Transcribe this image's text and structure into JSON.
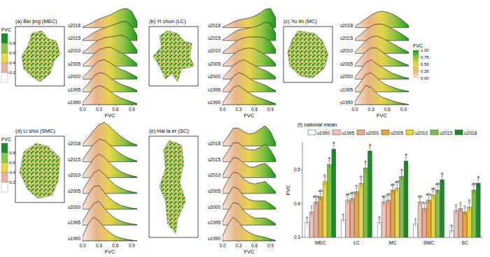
{
  "chart_data": [
    {
      "type": "ridgeline",
      "title": "(a) Bei jing (MEC)",
      "xlabel": "FVC",
      "x": [
        0,
        0.1,
        0.2,
        0.3,
        0.4,
        0.5,
        0.6,
        0.7,
        0.8,
        0.9,
        1.0
      ],
      "xlim": [
        0,
        1
      ],
      "xticks": [
        {
          "value": 0,
          "label": "0.0"
        },
        0.3,
        0.6,
        0.9
      ],
      "series": [
        {
          "name": "u1990",
          "values": [
            0.1,
            0.45,
            0.85,
            1.0,
            0.9,
            0.7,
            0.5,
            0.35,
            0.25,
            0.15,
            0.05
          ]
        },
        {
          "name": "u1995",
          "values": [
            0.1,
            0.4,
            0.8,
            1.0,
            0.95,
            0.75,
            0.55,
            0.4,
            0.3,
            0.2,
            0.07
          ]
        },
        {
          "name": "u2000",
          "values": [
            0.08,
            0.35,
            0.7,
            0.95,
            1.0,
            0.85,
            0.65,
            0.5,
            0.4,
            0.25,
            0.1
          ]
        },
        {
          "name": "u2005",
          "values": [
            0.06,
            0.3,
            0.6,
            0.85,
            0.95,
            1.0,
            0.85,
            0.7,
            0.55,
            0.35,
            0.12
          ]
        },
        {
          "name": "u2010",
          "values": [
            0.05,
            0.25,
            0.5,
            0.7,
            0.8,
            0.85,
            0.9,
            0.95,
            0.85,
            0.55,
            0.15
          ]
        },
        {
          "name": "u2015",
          "values": [
            0.04,
            0.2,
            0.4,
            0.55,
            0.65,
            0.75,
            0.85,
            0.95,
            1.0,
            0.75,
            0.25
          ]
        },
        {
          "name": "u2018",
          "values": [
            0.03,
            0.15,
            0.3,
            0.45,
            0.55,
            0.65,
            0.8,
            0.95,
            1.0,
            0.85,
            0.3
          ]
        }
      ]
    },
    {
      "type": "ridgeline",
      "title": "(b) Yi chun (LC)",
      "xlabel": "FVC",
      "x": [
        0,
        0.1,
        0.2,
        0.3,
        0.4,
        0.5,
        0.6,
        0.7,
        0.8,
        0.9,
        1.0
      ],
      "xlim": [
        0,
        1
      ],
      "xticks": [
        {
          "value": 0,
          "label": "0.0"
        },
        0.3,
        0.6,
        0.9
      ],
      "series": [
        {
          "name": "u1990",
          "values": [
            0.1,
            0.5,
            0.9,
            1.0,
            0.8,
            0.6,
            0.45,
            0.35,
            0.25,
            0.15,
            0.05
          ]
        },
        {
          "name": "u1995",
          "values": [
            0.08,
            0.4,
            0.8,
            1.0,
            0.9,
            0.7,
            0.55,
            0.45,
            0.35,
            0.2,
            0.06
          ]
        },
        {
          "name": "u2000",
          "values": [
            0.06,
            0.35,
            0.7,
            0.9,
            1.0,
            0.85,
            0.7,
            0.55,
            0.45,
            0.3,
            0.1
          ]
        },
        {
          "name": "u2005",
          "values": [
            0.05,
            0.3,
            0.6,
            0.8,
            0.9,
            0.95,
            0.9,
            0.75,
            0.6,
            0.4,
            0.12
          ]
        },
        {
          "name": "u2010",
          "values": [
            0.05,
            0.25,
            0.5,
            0.7,
            0.8,
            0.85,
            0.85,
            0.85,
            0.8,
            0.6,
            0.2
          ]
        },
        {
          "name": "u2015",
          "values": [
            0.04,
            0.2,
            0.4,
            0.55,
            0.6,
            0.65,
            0.7,
            0.8,
            0.95,
            0.9,
            0.35
          ]
        },
        {
          "name": "u2018",
          "values": [
            0.03,
            0.15,
            0.3,
            0.4,
            0.45,
            0.5,
            0.6,
            0.75,
            0.95,
            1.0,
            0.5
          ]
        }
      ]
    },
    {
      "type": "ridgeline",
      "title": "(c) Yu lin (MC)",
      "xlabel": "FVC",
      "x": [
        0,
        0.1,
        0.2,
        0.3,
        0.4,
        0.5,
        0.6,
        0.7,
        0.8,
        0.9,
        1.0
      ],
      "xlim": [
        0,
        1
      ],
      "xticks": [
        {
          "value": 0,
          "label": "0.0"
        },
        0.3,
        0.6,
        0.9
      ],
      "series": [
        {
          "name": "u1990",
          "values": [
            0.15,
            0.6,
            1.0,
            0.9,
            0.6,
            0.4,
            0.3,
            0.2,
            0.12,
            0.06,
            0.02
          ]
        },
        {
          "name": "u1995",
          "values": [
            0.12,
            0.5,
            0.9,
            1.0,
            0.75,
            0.5,
            0.35,
            0.25,
            0.15,
            0.08,
            0.03
          ]
        },
        {
          "name": "u2000",
          "values": [
            0.1,
            0.45,
            0.85,
            1.0,
            0.8,
            0.6,
            0.45,
            0.3,
            0.2,
            0.1,
            0.04
          ]
        },
        {
          "name": "u2005",
          "values": [
            0.08,
            0.4,
            0.75,
            0.95,
            0.95,
            0.75,
            0.55,
            0.4,
            0.28,
            0.15,
            0.05
          ]
        },
        {
          "name": "u2010",
          "values": [
            0.07,
            0.35,
            0.65,
            0.85,
            0.9,
            0.8,
            0.65,
            0.5,
            0.35,
            0.2,
            0.06
          ]
        },
        {
          "name": "u2015",
          "values": [
            0.06,
            0.3,
            0.55,
            0.75,
            0.85,
            0.85,
            0.75,
            0.6,
            0.45,
            0.28,
            0.08
          ]
        },
        {
          "name": "u2018",
          "values": [
            0.05,
            0.25,
            0.45,
            0.65,
            0.8,
            0.85,
            0.8,
            0.7,
            0.55,
            0.35,
            0.1
          ]
        }
      ]
    },
    {
      "type": "ridgeline",
      "title": "(d) Li shui (SMC)",
      "xlabel": "FVC",
      "x": [
        0,
        0.1,
        0.2,
        0.3,
        0.4,
        0.5,
        0.6,
        0.7,
        0.8,
        0.9,
        1.0
      ],
      "xlim": [
        0,
        1
      ],
      "xticks": [
        {
          "value": 0,
          "label": "0.0"
        },
        0.3,
        0.6,
        0.9
      ],
      "series": [
        {
          "name": "u1990",
          "values": [
            0.2,
            0.7,
            1.0,
            0.85,
            0.55,
            0.35,
            0.2,
            0.12,
            0.07,
            0.03,
            0.01
          ]
        },
        {
          "name": "u1995",
          "values": [
            0.15,
            0.55,
            0.9,
            1.0,
            0.7,
            0.45,
            0.28,
            0.17,
            0.1,
            0.05,
            0.02
          ]
        },
        {
          "name": "u2000",
          "values": [
            0.15,
            0.6,
            0.95,
            1.0,
            0.7,
            0.45,
            0.28,
            0.16,
            0.1,
            0.05,
            0.02
          ]
        },
        {
          "name": "u2005",
          "values": [
            0.12,
            0.5,
            0.85,
            1.0,
            0.8,
            0.55,
            0.35,
            0.22,
            0.13,
            0.07,
            0.02
          ]
        },
        {
          "name": "u2010",
          "values": [
            0.1,
            0.45,
            0.8,
            1.0,
            0.85,
            0.6,
            0.4,
            0.25,
            0.15,
            0.08,
            0.03
          ]
        },
        {
          "name": "u2015",
          "values": [
            0.08,
            0.4,
            0.75,
            0.95,
            0.9,
            0.7,
            0.5,
            0.33,
            0.2,
            0.1,
            0.03
          ]
        },
        {
          "name": "u2018",
          "values": [
            0.07,
            0.35,
            0.65,
            0.9,
            1.0,
            0.8,
            0.6,
            0.4,
            0.25,
            0.12,
            0.04
          ]
        }
      ]
    },
    {
      "type": "ridgeline",
      "title": "(e) Hai la er (SC)",
      "xlabel": "FVC",
      "x": [
        0,
        0.1,
        0.2,
        0.3,
        0.4,
        0.5,
        0.6,
        0.7,
        0.8,
        0.9,
        1.0
      ],
      "xlim": [
        0,
        1
      ],
      "xticks": [
        {
          "value": 0,
          "label": "0.0"
        },
        0.3,
        0.6,
        0.9
      ],
      "series": [
        {
          "name": "u1990",
          "values": [
            0.2,
            0.7,
            1.0,
            0.8,
            0.5,
            0.35,
            0.25,
            0.2,
            0.15,
            0.08,
            0.02
          ]
        },
        {
          "name": "u1995",
          "values": [
            0.15,
            0.6,
            0.95,
            0.9,
            0.6,
            0.4,
            0.3,
            0.3,
            0.3,
            0.2,
            0.05
          ]
        },
        {
          "name": "u2000",
          "values": [
            0.15,
            0.6,
            0.95,
            0.85,
            0.55,
            0.4,
            0.35,
            0.35,
            0.35,
            0.22,
            0.05
          ]
        },
        {
          "name": "u2005",
          "values": [
            0.12,
            0.55,
            0.9,
            0.85,
            0.6,
            0.45,
            0.4,
            0.45,
            0.5,
            0.3,
            0.06
          ]
        },
        {
          "name": "u2010",
          "values": [
            0.1,
            0.5,
            0.85,
            0.8,
            0.6,
            0.45,
            0.45,
            0.55,
            0.6,
            0.4,
            0.08
          ]
        },
        {
          "name": "u2015",
          "values": [
            0.1,
            0.45,
            0.8,
            0.8,
            0.6,
            0.5,
            0.5,
            0.6,
            0.75,
            0.5,
            0.1
          ]
        },
        {
          "name": "u2018",
          "values": [
            0.08,
            0.4,
            0.75,
            0.75,
            0.6,
            0.5,
            0.55,
            0.7,
            0.85,
            0.6,
            0.12
          ]
        }
      ]
    },
    {
      "type": "bar",
      "title": "(f) national mean",
      "ylabel": "FVC",
      "categories": [
        "MEC",
        "LC",
        "MC",
        "SMC",
        "SC"
      ],
      "ylim": [
        0.3,
        0.58
      ],
      "yticks": [
        0.3,
        0.4,
        0.5
      ],
      "legend": "top",
      "series": [
        {
          "name": "u1990",
          "color": "#ffffff",
          "values": [
            0.345,
            0.353,
            0.345,
            0.34,
            0.32
          ],
          "errors": [
            0.008,
            0.008,
            0.008,
            0.008,
            0.008
          ],
          "letters": [
            "e",
            "e",
            "b",
            "c",
            "b"
          ]
        },
        {
          "name": "u1995",
          "color": "#f2c2b4",
          "values": [
            0.375,
            0.41,
            0.405,
            0.405,
            0.38
          ],
          "errors": [
            0.01,
            0.01,
            0.01,
            0.01,
            0.01
          ],
          "letters": [
            "c",
            "ab",
            "ab",
            "ab",
            "c"
          ]
        },
        {
          "name": "u2000",
          "color": "#eda98a",
          "values": [
            0.405,
            0.415,
            0.41,
            0.385,
            0.385
          ],
          "errors": [
            0.01,
            0.01,
            0.01,
            0.01,
            0.01
          ],
          "letters": [
            "abc",
            "ab",
            "ab",
            "bc",
            "c"
          ]
        },
        {
          "name": "u2005",
          "color": "#e8a63c",
          "values": [
            0.42,
            0.435,
            0.44,
            0.41,
            0.375
          ],
          "errors": [
            0.01,
            0.01,
            0.01,
            0.01,
            0.01
          ],
          "letters": [
            "ab",
            "b",
            "ab",
            "abc",
            "c"
          ]
        },
        {
          "name": "u2010",
          "color": "#e6d83a",
          "values": [
            0.465,
            0.46,
            0.445,
            0.425,
            0.39
          ],
          "errors": [
            0.012,
            0.012,
            0.012,
            0.012,
            0.012
          ],
          "letters": [
            "b",
            "b",
            "ab",
            "ab",
            "b"
          ]
        },
        {
          "name": "u2015",
          "color": "#7cc242",
          "values": [
            0.515,
            0.505,
            0.48,
            0.44,
            0.44
          ],
          "errors": [
            0.012,
            0.012,
            0.012,
            0.012,
            0.012
          ],
          "letters": [
            "a",
            "a",
            "a",
            "ab",
            "ab"
          ]
        },
        {
          "name": "u2018",
          "color": "#1d8a2a",
          "values": [
            0.56,
            0.555,
            0.525,
            0.47,
            0.46
          ],
          "errors": [
            0.012,
            0.012,
            0.012,
            0.012,
            0.012
          ],
          "letters": [
            "a",
            "a",
            "a",
            "a",
            "a"
          ]
        }
      ]
    }
  ],
  "colorbar": {
    "title": "FVC",
    "range": [
      0,
      1
    ],
    "ticks": [
      {
        "value": 0,
        "label": "0.00"
      },
      {
        "value": 0.25,
        "label": "0.25"
      },
      {
        "value": 0.5,
        "label": "0.50"
      },
      {
        "value": 0.75,
        "label": "0.75"
      },
      {
        "value": 1,
        "label": "1.00"
      }
    ],
    "colors": [
      "#f6e4d6",
      "#e8b488",
      "#e8d44a",
      "#8cc444",
      "#1a9a24"
    ]
  },
  "map_legend": {
    "title": "FVC",
    "range": [
      0,
      1
    ],
    "ticks": [
      0.8,
      0.6,
      0.4,
      0.2
    ],
    "colors": [
      "#1a8a2a",
      "#8cc84a",
      "#e8d84a",
      "#e8b0a0",
      "#ffffff"
    ]
  }
}
